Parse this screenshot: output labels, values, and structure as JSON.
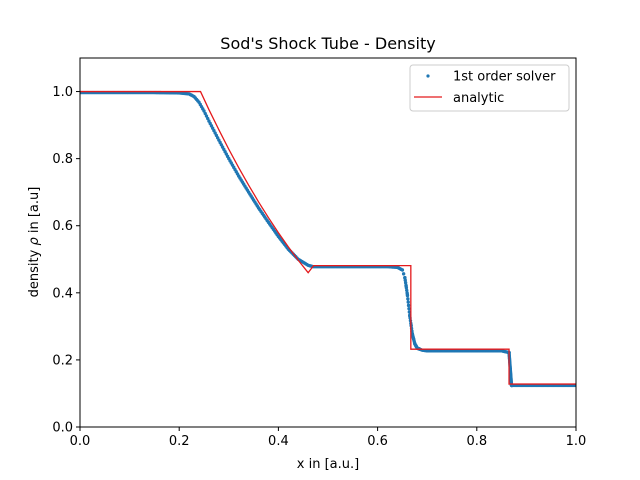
{
  "chart_data": {
    "type": "line",
    "title": "Sod's Shock Tube - Density",
    "xlabel": "x in [a.u.]",
    "ylabel_prefix": "density ",
    "ylabel_symbol": "ρ",
    "ylabel_suffix": " in [a.u]",
    "xlim": [
      0.0,
      1.0
    ],
    "ylim": [
      0.0,
      1.1
    ],
    "xticks": [
      0.0,
      0.2,
      0.4,
      0.6,
      0.8,
      1.0
    ],
    "xtick_labels": [
      "0.0",
      "0.2",
      "0.4",
      "0.6",
      "0.8",
      "1.0"
    ],
    "yticks": [
      0.0,
      0.2,
      0.4,
      0.6,
      0.8,
      1.0
    ],
    "ytick_labels": [
      "0.0",
      "0.2",
      "0.4",
      "0.6",
      "0.8",
      "1.0"
    ],
    "grid": false,
    "legend_position": "top-right",
    "series": [
      {
        "name": "1st order solver",
        "kind": "scatter",
        "color": "#1f77b4",
        "x": [
          0.0,
          0.05,
          0.1,
          0.15,
          0.2,
          0.22,
          0.23,
          0.24,
          0.25,
          0.26,
          0.28,
          0.3,
          0.32,
          0.34,
          0.36,
          0.38,
          0.4,
          0.42,
          0.44,
          0.46,
          0.47,
          0.48,
          0.5,
          0.55,
          0.6,
          0.62,
          0.64,
          0.65,
          0.655,
          0.66,
          0.665,
          0.67,
          0.675,
          0.68,
          0.69,
          0.7,
          0.75,
          0.8,
          0.85,
          0.865,
          0.87,
          0.9,
          0.95,
          1.0
        ],
        "y": [
          0.997,
          0.997,
          0.997,
          0.997,
          0.996,
          0.993,
          0.985,
          0.968,
          0.942,
          0.912,
          0.855,
          0.8,
          0.748,
          0.7,
          0.653,
          0.61,
          0.568,
          0.53,
          0.5,
          0.482,
          0.478,
          0.478,
          0.478,
          0.478,
          0.478,
          0.478,
          0.476,
          0.468,
          0.445,
          0.395,
          0.33,
          0.278,
          0.248,
          0.235,
          0.229,
          0.227,
          0.227,
          0.227,
          0.227,
          0.222,
          0.124,
          0.124,
          0.124,
          0.124
        ]
      },
      {
        "name": "analytic",
        "kind": "line",
        "color": "#e41a1c",
        "x": [
          0.0,
          0.243,
          0.26,
          0.28,
          0.3,
          0.32,
          0.34,
          0.36,
          0.38,
          0.4,
          0.42,
          0.44,
          0.46,
          0.471,
          0.663,
          0.663,
          0.667,
          0.667,
          0.865,
          0.865,
          1.0
        ],
        "y": [
          1.0,
          1.0,
          0.946,
          0.886,
          0.828,
          0.773,
          0.721,
          0.671,
          0.624,
          0.579,
          0.537,
          0.497,
          0.46,
          0.481,
          0.481,
          0.481,
          0.481,
          0.232,
          0.232,
          0.128,
          0.128
        ]
      }
    ]
  }
}
